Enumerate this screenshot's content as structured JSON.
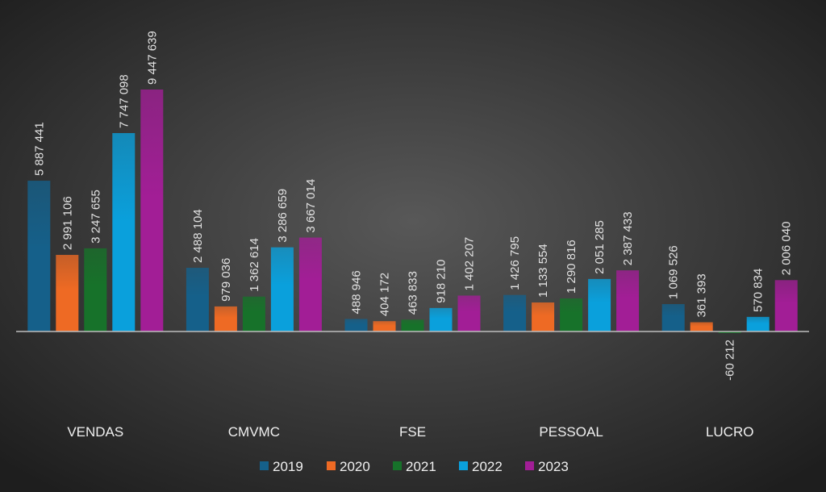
{
  "chart_data": {
    "type": "bar",
    "title": "",
    "xlabel": "",
    "ylabel": "",
    "categories": [
      "VENDAS",
      "CMVMC",
      "FSE",
      "PESSOAL",
      "LUCRO"
    ],
    "series": [
      {
        "name": "2019",
        "color": "#15608a",
        "values": [
          5887441,
          2488104,
          488946,
          1426795,
          1069526
        ],
        "labels": [
          "5 887 441",
          "2 488 104",
          "488 946",
          "1 426 795",
          "1 069 526"
        ]
      },
      {
        "name": "2020",
        "color": "#ee6a24",
        "values": [
          2991106,
          979036,
          404172,
          1133554,
          361393
        ],
        "labels": [
          "2 991 106",
          "979 036",
          "404 172",
          "1 133 554",
          "361 393"
        ]
      },
      {
        "name": "2021",
        "color": "#17722a",
        "values": [
          3247655,
          1362614,
          463833,
          1290816,
          -60212
        ],
        "labels": [
          "3 247 655",
          "1 362 614",
          "463 833",
          "1 290 816",
          "-60 212"
        ]
      },
      {
        "name": "2022",
        "color": "#0aa0dc",
        "values": [
          7747098,
          3286659,
          918210,
          2051285,
          570834
        ],
        "labels": [
          "7 747 098",
          "3 286 659",
          "918 210",
          "2 051 285",
          "570 834"
        ]
      },
      {
        "name": "2023",
        "color": "#a21e96",
        "values": [
          9447639,
          3667014,
          1402207,
          2387433,
          2006040
        ],
        "labels": [
          "9 447 639",
          "3 667 014",
          "1 402 207",
          "2 387 433",
          "2 006 040"
        ]
      }
    ],
    "ylim": [
      -60212,
      9447639
    ],
    "grid": false,
    "legend": "bottom"
  }
}
